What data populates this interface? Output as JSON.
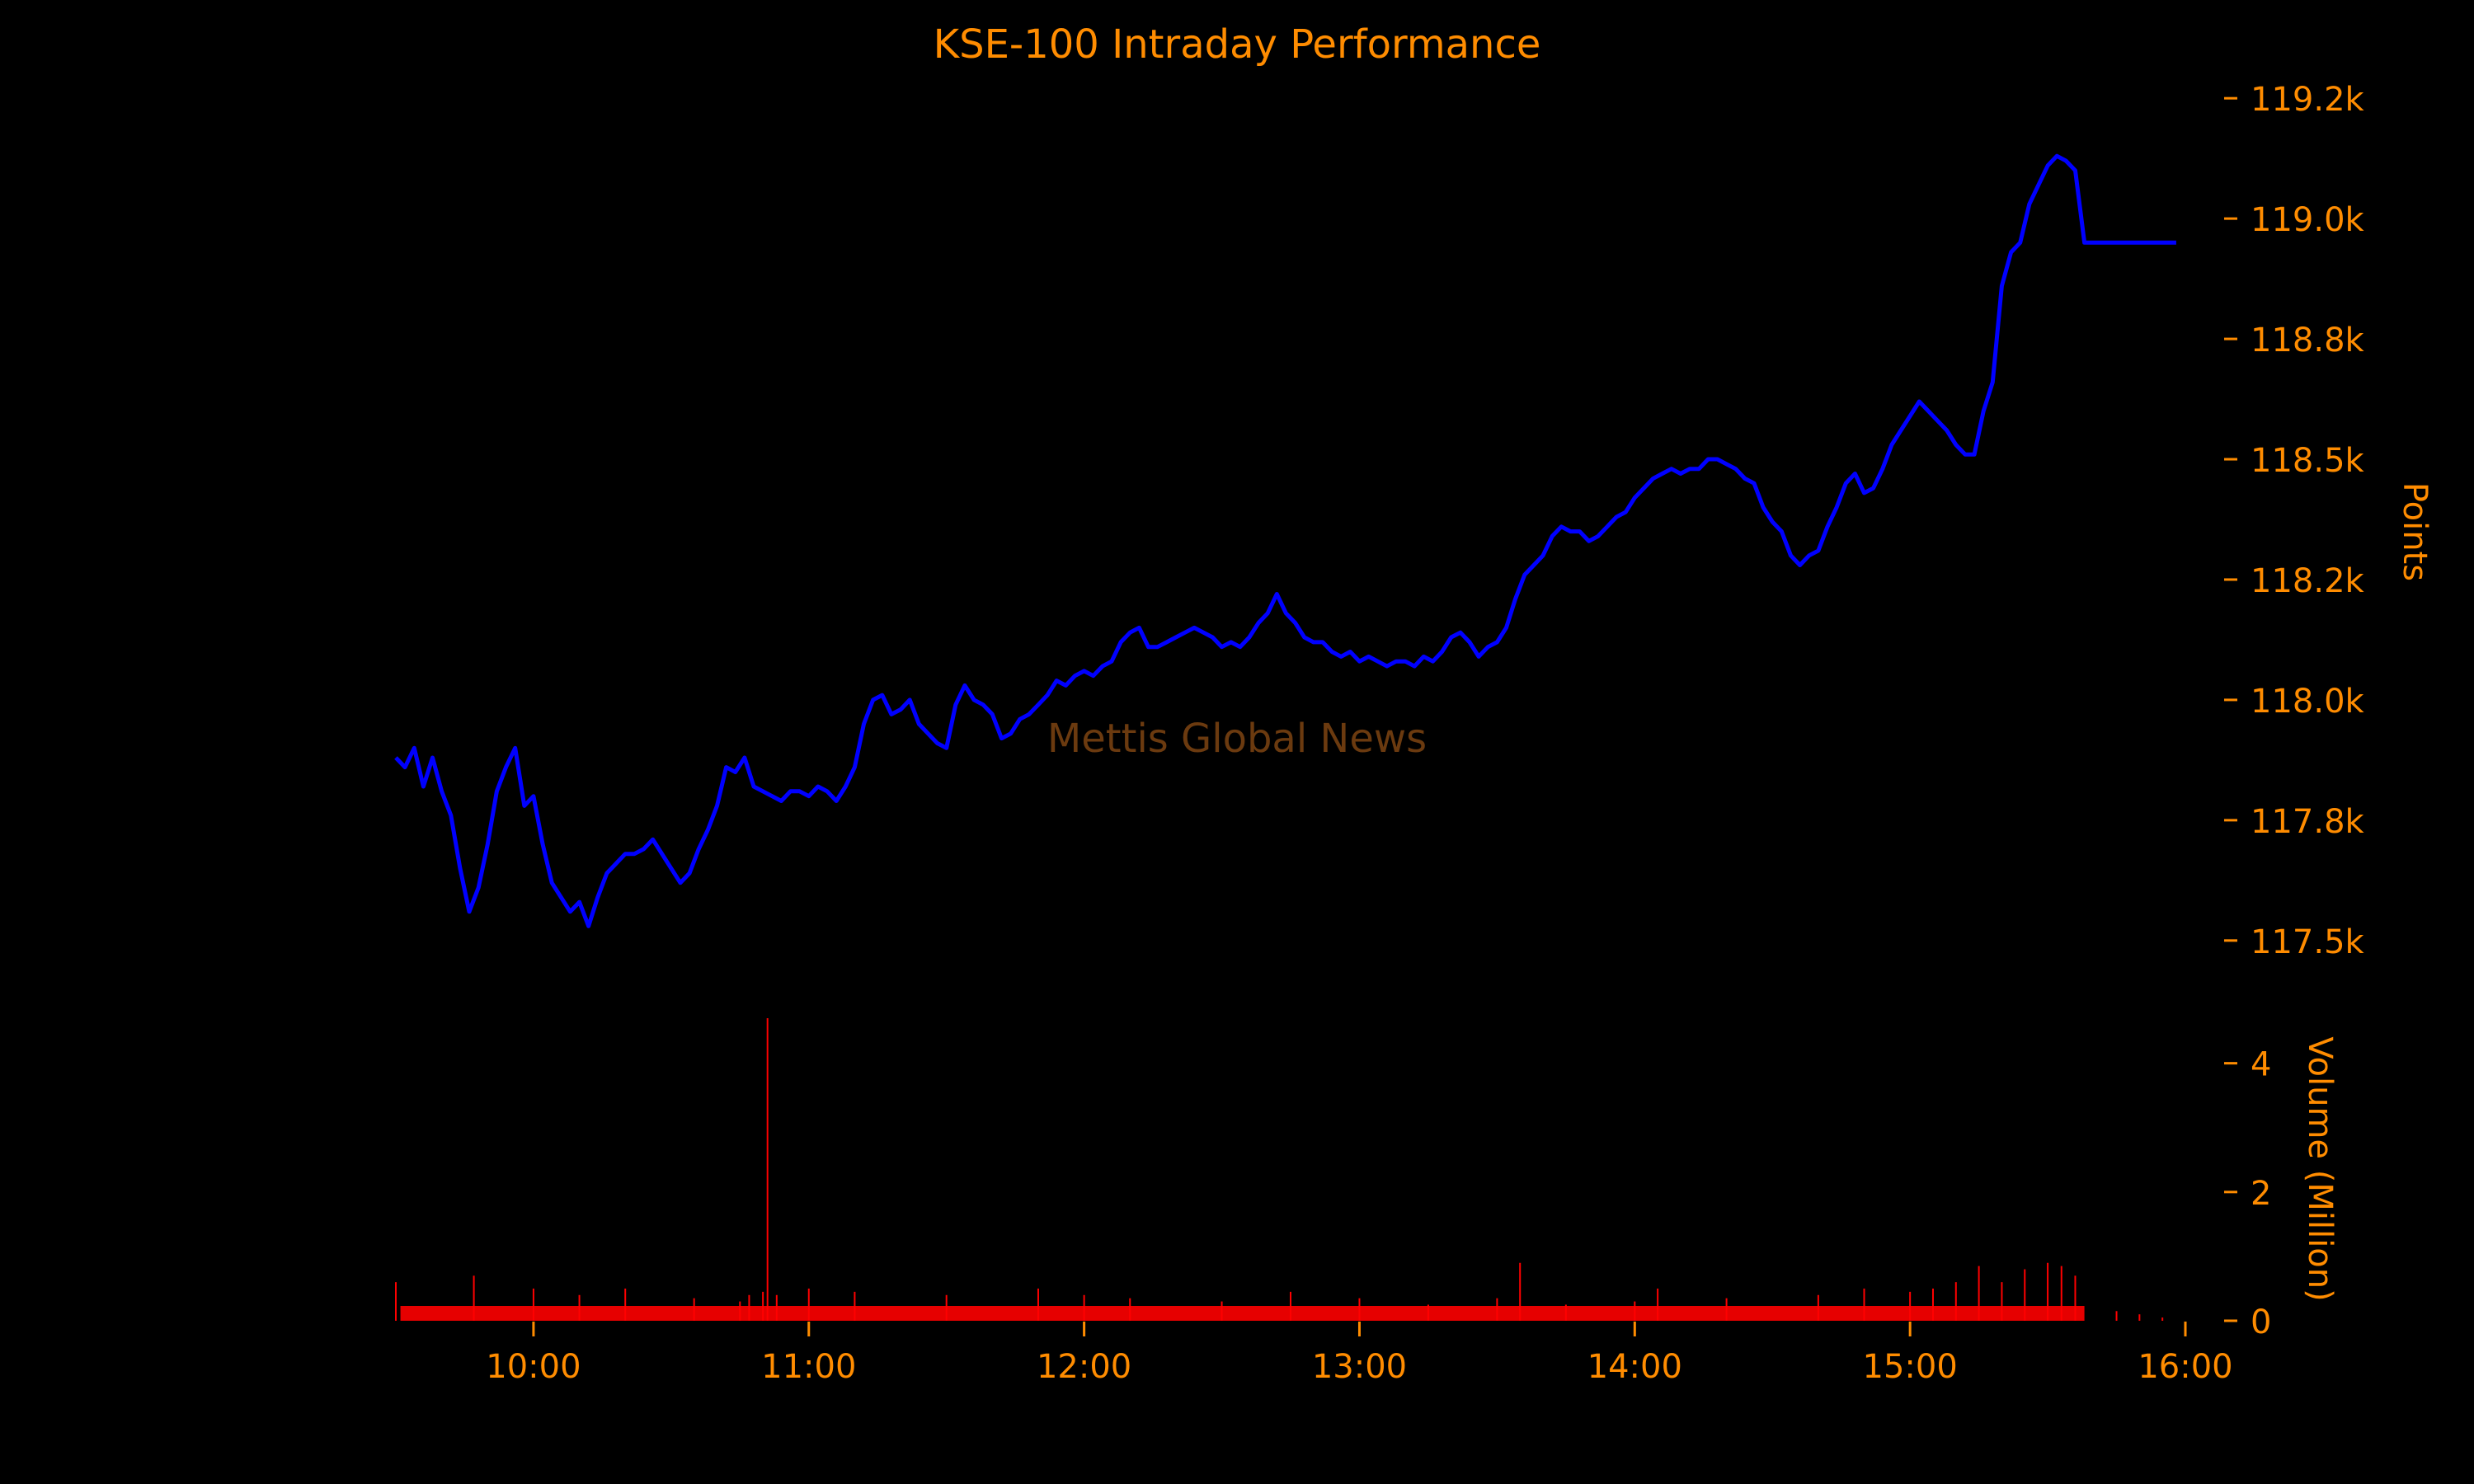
{
  "chart_data": {
    "type": "line",
    "title": "KSE-100 Intraday Performance",
    "watermark": "Mettis Global News",
    "colors": {
      "background": "#000000",
      "text": "#ff8c00",
      "price_line": "#0000ff",
      "volume_bars": "#ff0000",
      "watermark": "#6b3a0f"
    },
    "x_axis": {
      "tick_labels": [
        "10:00",
        "11:00",
        "12:00",
        "13:00",
        "14:00",
        "15:00",
        "16:00"
      ],
      "range": [
        "09:30",
        "16:00"
      ]
    },
    "price_axis": {
      "label": "Points",
      "side": "right",
      "tick_values": [
        117500,
        117750,
        118000,
        118250,
        118500,
        118750,
        119000,
        119250
      ],
      "tick_labels": [
        "117.5k",
        "117.8k",
        "118.0k",
        "118.2k",
        "118.5k",
        "118.8k",
        "119.0k",
        "119.2k"
      ],
      "range": [
        117450,
        119300
      ]
    },
    "volume_axis": {
      "label": "Volume (Million)",
      "side": "right",
      "tick_values": [
        0,
        2,
        4
      ],
      "tick_labels": [
        "0",
        "2",
        "4"
      ],
      "range": [
        0,
        4.7
      ]
    },
    "series": [
      {
        "kind": "price",
        "points": [
          [
            "09:30",
            117880
          ],
          [
            "09:32",
            117860
          ],
          [
            "09:34",
            117900
          ],
          [
            "09:36",
            117820
          ],
          [
            "09:38",
            117880
          ],
          [
            "09:40",
            117810
          ],
          [
            "09:42",
            117760
          ],
          [
            "09:44",
            117650
          ],
          [
            "09:46",
            117560
          ],
          [
            "09:48",
            117610
          ],
          [
            "09:50",
            117700
          ],
          [
            "09:52",
            117810
          ],
          [
            "09:54",
            117860
          ],
          [
            "09:56",
            117900
          ],
          [
            "09:58",
            117780
          ],
          [
            "10:00",
            117800
          ],
          [
            "10:02",
            117700
          ],
          [
            "10:04",
            117620
          ],
          [
            "10:06",
            117590
          ],
          [
            "10:08",
            117560
          ],
          [
            "10:10",
            117580
          ],
          [
            "10:12",
            117530
          ],
          [
            "10:14",
            117590
          ],
          [
            "10:16",
            117640
          ],
          [
            "10:18",
            117660
          ],
          [
            "10:20",
            117680
          ],
          [
            "10:22",
            117680
          ],
          [
            "10:24",
            117690
          ],
          [
            "10:26",
            117710
          ],
          [
            "10:28",
            117680
          ],
          [
            "10:30",
            117650
          ],
          [
            "10:32",
            117620
          ],
          [
            "10:34",
            117640
          ],
          [
            "10:36",
            117690
          ],
          [
            "10:38",
            117730
          ],
          [
            "10:40",
            117780
          ],
          [
            "10:42",
            117860
          ],
          [
            "10:44",
            117850
          ],
          [
            "10:46",
            117880
          ],
          [
            "10:48",
            117820
          ],
          [
            "10:50",
            117810
          ],
          [
            "10:52",
            117800
          ],
          [
            "10:54",
            117790
          ],
          [
            "10:56",
            117810
          ],
          [
            "10:58",
            117810
          ],
          [
            "11:00",
            117800
          ],
          [
            "11:02",
            117820
          ],
          [
            "11:04",
            117810
          ],
          [
            "11:06",
            117790
          ],
          [
            "11:08",
            117820
          ],
          [
            "11:10",
            117860
          ],
          [
            "11:12",
            117950
          ],
          [
            "11:14",
            118000
          ],
          [
            "11:16",
            118010
          ],
          [
            "11:18",
            117970
          ],
          [
            "11:20",
            117980
          ],
          [
            "11:22",
            118000
          ],
          [
            "11:24",
            117950
          ],
          [
            "11:26",
            117930
          ],
          [
            "11:28",
            117910
          ],
          [
            "11:30",
            117900
          ],
          [
            "11:32",
            117990
          ],
          [
            "11:34",
            118030
          ],
          [
            "11:36",
            118000
          ],
          [
            "11:38",
            117990
          ],
          [
            "11:40",
            117970
          ],
          [
            "11:42",
            117920
          ],
          [
            "11:44",
            117930
          ],
          [
            "11:46",
            117960
          ],
          [
            "11:48",
            117970
          ],
          [
            "11:50",
            117990
          ],
          [
            "11:52",
            118010
          ],
          [
            "11:54",
            118040
          ],
          [
            "11:56",
            118030
          ],
          [
            "11:58",
            118050
          ],
          [
            "12:00",
            118060
          ],
          [
            "12:02",
            118050
          ],
          [
            "12:04",
            118070
          ],
          [
            "12:06",
            118080
          ],
          [
            "12:08",
            118120
          ],
          [
            "12:10",
            118140
          ],
          [
            "12:12",
            118150
          ],
          [
            "12:14",
            118110
          ],
          [
            "12:16",
            118110
          ],
          [
            "12:18",
            118120
          ],
          [
            "12:20",
            118130
          ],
          [
            "12:22",
            118140
          ],
          [
            "12:24",
            118150
          ],
          [
            "12:26",
            118140
          ],
          [
            "12:28",
            118130
          ],
          [
            "12:30",
            118110
          ],
          [
            "12:32",
            118120
          ],
          [
            "12:34",
            118110
          ],
          [
            "12:36",
            118130
          ],
          [
            "12:38",
            118160
          ],
          [
            "12:40",
            118180
          ],
          [
            "12:42",
            118220
          ],
          [
            "12:44",
            118180
          ],
          [
            "12:46",
            118160
          ],
          [
            "12:48",
            118130
          ],
          [
            "12:50",
            118120
          ],
          [
            "12:52",
            118120
          ],
          [
            "12:54",
            118100
          ],
          [
            "12:56",
            118090
          ],
          [
            "12:58",
            118100
          ],
          [
            "13:00",
            118080
          ],
          [
            "13:02",
            118090
          ],
          [
            "13:04",
            118080
          ],
          [
            "13:06",
            118070
          ],
          [
            "13:08",
            118080
          ],
          [
            "13:10",
            118080
          ],
          [
            "13:12",
            118070
          ],
          [
            "13:14",
            118090
          ],
          [
            "13:16",
            118080
          ],
          [
            "13:18",
            118100
          ],
          [
            "13:20",
            118130
          ],
          [
            "13:22",
            118140
          ],
          [
            "13:24",
            118120
          ],
          [
            "13:26",
            118090
          ],
          [
            "13:28",
            118110
          ],
          [
            "13:30",
            118120
          ],
          [
            "13:32",
            118150
          ],
          [
            "13:34",
            118210
          ],
          [
            "13:36",
            118260
          ],
          [
            "13:38",
            118280
          ],
          [
            "13:40",
            118300
          ],
          [
            "13:42",
            118340
          ],
          [
            "13:44",
            118360
          ],
          [
            "13:46",
            118350
          ],
          [
            "13:48",
            118350
          ],
          [
            "13:50",
            118330
          ],
          [
            "13:52",
            118340
          ],
          [
            "13:54",
            118360
          ],
          [
            "13:56",
            118380
          ],
          [
            "13:58",
            118390
          ],
          [
            "14:00",
            118420
          ],
          [
            "14:02",
            118440
          ],
          [
            "14:04",
            118460
          ],
          [
            "14:06",
            118470
          ],
          [
            "14:08",
            118480
          ],
          [
            "14:10",
            118470
          ],
          [
            "14:12",
            118480
          ],
          [
            "14:14",
            118480
          ],
          [
            "14:16",
            118500
          ],
          [
            "14:18",
            118500
          ],
          [
            "14:20",
            118490
          ],
          [
            "14:22",
            118480
          ],
          [
            "14:24",
            118460
          ],
          [
            "14:26",
            118450
          ],
          [
            "14:28",
            118400
          ],
          [
            "14:30",
            118370
          ],
          [
            "14:32",
            118350
          ],
          [
            "14:34",
            118300
          ],
          [
            "14:36",
            118280
          ],
          [
            "14:38",
            118300
          ],
          [
            "14:40",
            118310
          ],
          [
            "14:42",
            118360
          ],
          [
            "14:44",
            118400
          ],
          [
            "14:46",
            118450
          ],
          [
            "14:48",
            118470
          ],
          [
            "14:50",
            118430
          ],
          [
            "14:52",
            118440
          ],
          [
            "14:54",
            118480
          ],
          [
            "14:56",
            118530
          ],
          [
            "14:58",
            118560
          ],
          [
            "15:00",
            118590
          ],
          [
            "15:02",
            118620
          ],
          [
            "15:04",
            118600
          ],
          [
            "15:06",
            118580
          ],
          [
            "15:08",
            118560
          ],
          [
            "15:10",
            118530
          ],
          [
            "15:12",
            118510
          ],
          [
            "15:14",
            118510
          ],
          [
            "15:16",
            118600
          ],
          [
            "15:18",
            118660
          ],
          [
            "15:20",
            118860
          ],
          [
            "15:22",
            118930
          ],
          [
            "15:24",
            118950
          ],
          [
            "15:26",
            119030
          ],
          [
            "15:28",
            119070
          ],
          [
            "15:30",
            119110
          ],
          [
            "15:32",
            119130
          ],
          [
            "15:34",
            119120
          ],
          [
            "15:36",
            119100
          ],
          [
            "15:38",
            118950
          ],
          [
            "15:40",
            118950
          ],
          [
            "15:45",
            118950
          ],
          [
            "15:50",
            118950
          ],
          [
            "15:55",
            118950
          ],
          [
            "15:58",
            118950
          ]
        ]
      },
      {
        "kind": "volume",
        "points": [
          [
            "09:30",
            0.6
          ],
          [
            "09:47",
            0.7
          ],
          [
            "10:00",
            0.5
          ],
          [
            "10:10",
            0.4
          ],
          [
            "10:20",
            0.5
          ],
          [
            "10:35",
            0.35
          ],
          [
            "10:45",
            0.3
          ],
          [
            "10:47",
            0.4
          ],
          [
            "10:50",
            0.45
          ],
          [
            "10:51",
            4.7
          ],
          [
            "10:53",
            0.4
          ],
          [
            "11:00",
            0.5
          ],
          [
            "11:10",
            0.45
          ],
          [
            "11:30",
            0.4
          ],
          [
            "11:50",
            0.5
          ],
          [
            "12:00",
            0.4
          ],
          [
            "12:10",
            0.35
          ],
          [
            "12:30",
            0.3
          ],
          [
            "12:45",
            0.45
          ],
          [
            "13:00",
            0.35
          ],
          [
            "13:15",
            0.25
          ],
          [
            "13:30",
            0.35
          ],
          [
            "13:35",
            0.9
          ],
          [
            "13:45",
            0.25
          ],
          [
            "14:00",
            0.3
          ],
          [
            "14:05",
            0.5
          ],
          [
            "14:20",
            0.35
          ],
          [
            "14:40",
            0.4
          ],
          [
            "14:50",
            0.5
          ],
          [
            "15:00",
            0.45
          ],
          [
            "15:05",
            0.5
          ],
          [
            "15:10",
            0.6
          ],
          [
            "15:15",
            0.85
          ],
          [
            "15:20",
            0.6
          ],
          [
            "15:25",
            0.8
          ],
          [
            "15:30",
            0.9
          ],
          [
            "15:33",
            0.85
          ],
          [
            "15:36",
            0.7
          ],
          [
            "15:45",
            0.15
          ],
          [
            "15:50",
            0.1
          ],
          [
            "15:55",
            0.05
          ]
        ]
      }
    ]
  }
}
